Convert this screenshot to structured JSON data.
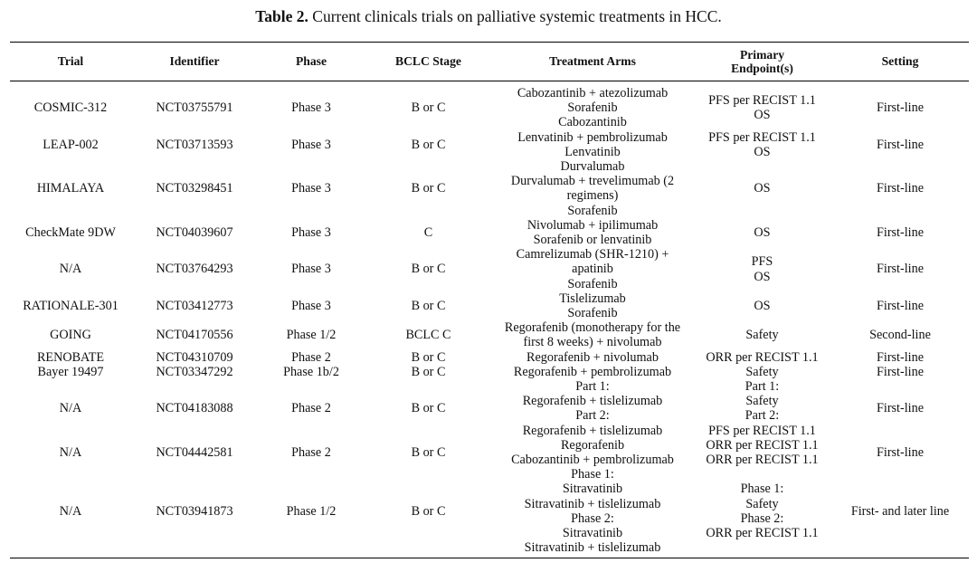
{
  "caption": {
    "label": "Table 2.",
    "text": " Current clinicals trials on palliative systemic treatments in HCC."
  },
  "headers": [
    "Trial",
    "Identifier",
    "Phase",
    "BCLC Stage",
    "Treatment Arms",
    "Primary Endpoint(s)",
    "Setting"
  ],
  "rows": [
    {
      "trial": "COSMIC-312",
      "identifier": "NCT03755791",
      "phase": "Phase 3",
      "bclc": "B or C",
      "arms": [
        "Cabozantinib + atezolizumab",
        "Sorafenib",
        "Cabozantinib"
      ],
      "endpoints": [
        "PFS per RECIST 1.1",
        "OS"
      ],
      "setting": "First-line"
    },
    {
      "trial": "LEAP-002",
      "identifier": "NCT03713593",
      "phase": "Phase 3",
      "bclc": "B or C",
      "arms": [
        "Lenvatinib + pembrolizumab",
        "Lenvatinib"
      ],
      "endpoints": [
        "PFS per RECIST 1.1",
        "OS"
      ],
      "setting": "First-line"
    },
    {
      "trial": "HIMALAYA",
      "identifier": "NCT03298451",
      "phase": "Phase 3",
      "bclc": "B or C",
      "arms": [
        "Durvalumab",
        "Durvalumab + trevelimumab (2 regimens)",
        "Sorafenib"
      ],
      "endpoints": [
        "OS"
      ],
      "setting": "First-line"
    },
    {
      "trial": "CheckMate 9DW",
      "identifier": "NCT04039607",
      "phase": "Phase 3",
      "bclc": "C",
      "arms": [
        "Nivolumab + ipilimumab",
        "Sorafenib or lenvatinib"
      ],
      "endpoints": [
        "OS"
      ],
      "setting": "First-line"
    },
    {
      "trial": "N/A",
      "identifier": "NCT03764293",
      "phase": "Phase 3",
      "bclc": "B or C",
      "arms": [
        "Camrelizumab (SHR-1210) + apatinib",
        "Sorafenib"
      ],
      "endpoints": [
        "PFS",
        "OS"
      ],
      "setting": "First-line"
    },
    {
      "trial": "RATIONALE-301",
      "identifier": "NCT03412773",
      "phase": "Phase 3",
      "bclc": "B or C",
      "arms": [
        "Tislelizumab",
        "Sorafenib"
      ],
      "endpoints": [
        "OS"
      ],
      "setting": "First-line"
    },
    {
      "trial": "GOING",
      "identifier": "NCT04170556",
      "phase": "Phase 1/2",
      "bclc": "BCLC C",
      "arms": [
        "Regorafenib (monotherapy for the first 8 weeks) + nivolumab"
      ],
      "endpoints": [
        "Safety"
      ],
      "setting": "Second-line"
    },
    {
      "trial": "RENOBATE",
      "identifier": "NCT04310709",
      "phase": "Phase 2",
      "bclc": "B or C",
      "arms": [
        "Regorafenib + nivolumab"
      ],
      "endpoints": [
        "ORR per RECIST 1.1"
      ],
      "setting": "First-line"
    },
    {
      "trial": "Bayer 19497",
      "identifier": "NCT03347292",
      "phase": "Phase 1b/2",
      "bclc": "B or C",
      "arms": [
        "Regorafenib + pembrolizumab"
      ],
      "endpoints": [
        "Safety"
      ],
      "setting": "First-line"
    },
    {
      "trial": "N/A",
      "identifier": "NCT04183088",
      "phase": "Phase 2",
      "bclc": "B or C",
      "arms": [
        "Part 1:",
        "Regorafenib + tislelizumab",
        "Part 2:",
        "Regorafenib + tislelizumab"
      ],
      "endpoints": [
        "Part 1:",
        "Safety",
        "Part 2:",
        "PFS per RECIST 1.1"
      ],
      "setting": "First-line"
    },
    {
      "trial": "N/A",
      "identifier": "NCT04442581",
      "phase": "Phase 2",
      "bclc": "B or C",
      "arms": [
        "Regorafenib",
        "Cabozantinib + pembrolizumab"
      ],
      "endpoints": [
        "ORR per RECIST 1.1",
        "ORR per RECIST 1.1"
      ],
      "setting": "First-line"
    },
    {
      "trial": "N/A",
      "identifier": "NCT03941873",
      "phase": "Phase 1/2",
      "bclc": "B or C",
      "arms": [
        "Phase 1:",
        "Sitravatinib",
        "Sitravatinib + tislelizumab",
        "Phase 2:",
        "Sitravatinib",
        "Sitravatinib + tislelizumab"
      ],
      "endpoints": [
        "Phase 1:",
        "Safety",
        "Phase 2:",
        "ORR per RECIST 1.1"
      ],
      "setting": "First- and later line"
    }
  ]
}
